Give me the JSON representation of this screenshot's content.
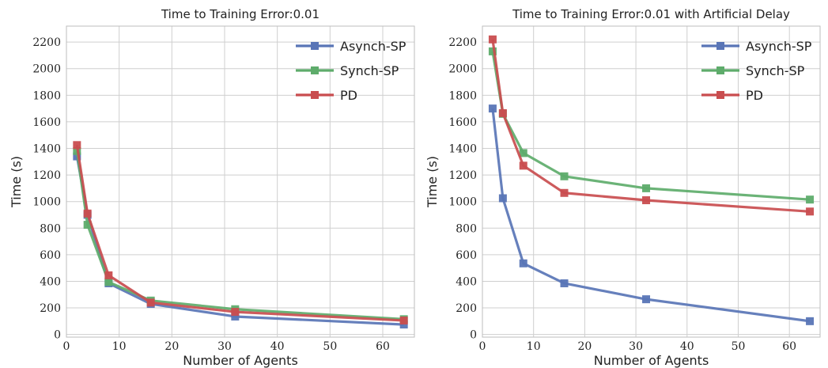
{
  "chart_data": [
    {
      "type": "line",
      "title": "Time to Training Error:0.01",
      "xlabel": "Number of Agents",
      "ylabel": "Time (s)",
      "xlim": [
        0,
        66
      ],
      "ylim": [
        -20,
        2320
      ],
      "xticks": [
        0,
        10,
        20,
        30,
        40,
        50,
        60
      ],
      "yticks": [
        0,
        200,
        400,
        600,
        800,
        1000,
        1200,
        1400,
        1600,
        1800,
        2000,
        2200
      ],
      "grid": true,
      "legend_position": "top-right",
      "x": [
        2,
        4,
        8,
        16,
        32,
        64
      ],
      "series": [
        {
          "name": "Asynch-SP",
          "color": "#5975b6",
          "values": [
            1340,
            900,
            385,
            230,
            135,
            75
          ]
        },
        {
          "name": "Synch-SP",
          "color": "#5eac6b",
          "values": [
            1380,
            825,
            395,
            255,
            190,
            115
          ]
        },
        {
          "name": "PD",
          "color": "#c94d4f",
          "values": [
            1425,
            910,
            445,
            240,
            170,
            105
          ]
        }
      ]
    },
    {
      "type": "line",
      "title": "Time to Training Error:0.01 with Artificial Delay",
      "xlabel": "Number of Agents",
      "ylabel": "Time (s)",
      "xlim": [
        0,
        66
      ],
      "ylim": [
        -20,
        2320
      ],
      "xticks": [
        0,
        10,
        20,
        30,
        40,
        50,
        60
      ],
      "yticks": [
        0,
        200,
        400,
        600,
        800,
        1000,
        1200,
        1400,
        1600,
        1800,
        2000,
        2200
      ],
      "grid": true,
      "legend_position": "top-right",
      "x": [
        2,
        4,
        8,
        16,
        32,
        64
      ],
      "series": [
        {
          "name": "Asynch-SP",
          "color": "#5975b6",
          "values": [
            1700,
            1025,
            535,
            385,
            265,
            100
          ]
        },
        {
          "name": "Synch-SP",
          "color": "#5eac6b",
          "values": [
            2130,
            1660,
            1365,
            1190,
            1100,
            1015
          ]
        },
        {
          "name": "PD",
          "color": "#c94d4f",
          "values": [
            2220,
            1665,
            1270,
            1065,
            1010,
            925
          ]
        }
      ]
    }
  ]
}
